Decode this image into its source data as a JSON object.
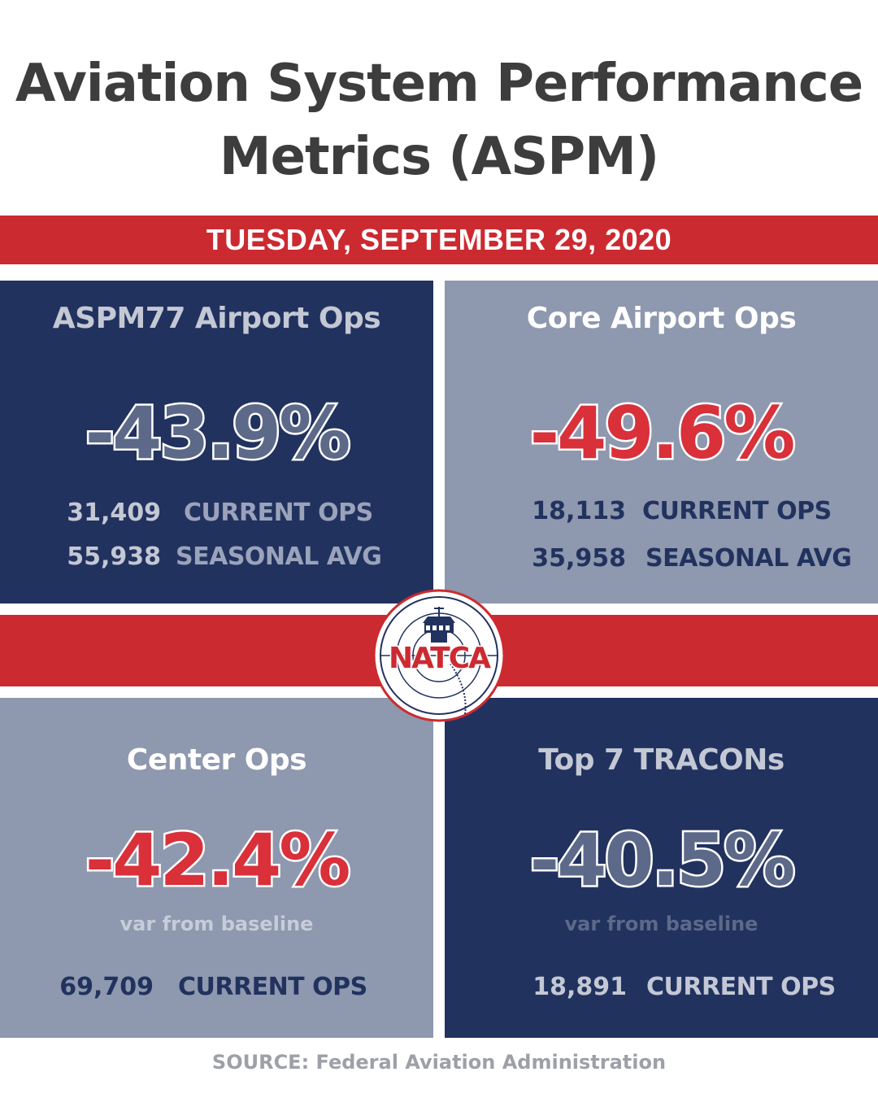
{
  "title_line1": "Aviation System Performance",
  "title_line2": "Metrics (ASPM)",
  "date": "TUESDAY, SEPTEMBER 29, 2020",
  "logo_text": "NATCA",
  "colors": {
    "navy": "#22325f",
    "slate": "#8e98ae",
    "red": "#cc2a31",
    "value_grey": "#5d6989",
    "value_red": "#d9303a"
  },
  "panels": [
    {
      "title": "ASPM77 Airport Ops",
      "value": "-43.9%",
      "rows": [
        {
          "number": "31,409",
          "label": "CURRENT OPS"
        },
        {
          "number": "55,938",
          "label": "SEASONAL AVG"
        }
      ]
    },
    {
      "title": "Core Airport Ops",
      "value": "-49.6%",
      "rows": [
        {
          "number": "18,113",
          "label": "CURRENT OPS"
        },
        {
          "number": "35,958",
          "label": "SEASONAL AVG"
        }
      ]
    },
    {
      "title": "Center Ops",
      "value": "-42.4%",
      "subtitle": "var from baseline",
      "rows": [
        {
          "number": "69,709",
          "label": "CURRENT OPS"
        }
      ]
    },
    {
      "title": "Top 7 TRACONs",
      "value": "-40.5%",
      "subtitle": "var from baseline",
      "rows": [
        {
          "number": "18,891",
          "label": "CURRENT OPS"
        }
      ]
    }
  ],
  "source": "SOURCE: Federal Aviation Administration"
}
